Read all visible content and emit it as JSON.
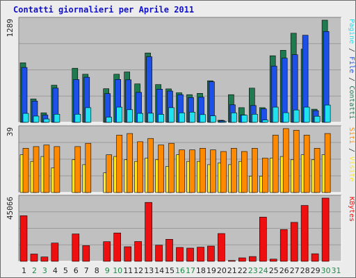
{
  "title": "Contatti giornalieri per Aprile 2011",
  "colors": {
    "pagine": "#1fe2f0",
    "file": "#1c50e8",
    "contatti": "#1f7a4f",
    "siti": "#ff8a00",
    "visite": "#ffe81e",
    "kbytes": "#ee1010",
    "title": "#1010c8",
    "weekend_label": "#1f8a4a",
    "weekday_label": "#222222"
  },
  "chart_data": [
    {
      "type": "bar",
      "name_label_parts": [
        "Pagine",
        " / ",
        "File",
        " / ",
        "Contatti"
      ],
      "max_label": "1289",
      "ylim": [
        0,
        1289
      ],
      "categories": [
        "1",
        "2",
        "3",
        "4",
        "5",
        "6",
        "7",
        "8",
        "9",
        "10",
        "11",
        "12",
        "13",
        "14",
        "15",
        "16",
        "17",
        "18",
        "19",
        "20",
        "21",
        "22",
        "23",
        "24",
        "25",
        "26",
        "27",
        "28",
        "29",
        "30",
        "31"
      ],
      "series": [
        {
          "name": "Contatti",
          "values": [
            751,
            295,
            119,
            468,
            0,
            682,
            607,
            0,
            424,
            607,
            636,
            485,
            875,
            476,
            422,
            373,
            349,
            366,
            524,
            26,
            349,
            185,
            431,
            185,
            840,
            908,
            1124,
            923,
            166,
            1289,
            0
          ]
        },
        {
          "name": "File",
          "values": [
            692,
            268,
            92,
            431,
            0,
            539,
            569,
            0,
            362,
            541,
            537,
            378,
            828,
            418,
            395,
            349,
            312,
            317,
            512,
            20,
            221,
            93,
            212,
            170,
            709,
            809,
            853,
            1099,
            147,
            1146,
            0
          ]
        },
        {
          "name": "Pagine",
          "values": [
            113,
            79,
            43,
            103,
            0,
            103,
            185,
            0,
            66,
            192,
            160,
            113,
            115,
            101,
            185,
            120,
            129,
            98,
            82,
            10,
            120,
            91,
            103,
            30,
            192,
            122,
            156,
            192,
            77,
            218,
            0
          ]
        }
      ],
      "grid": true
    },
    {
      "type": "bar",
      "name_label_parts": [
        "Siti",
        " / ",
        "Visite"
      ],
      "max_label": "39",
      "ylim": [
        0,
        39
      ],
      "categories": [
        "1",
        "2",
        "3",
        "4",
        "5",
        "6",
        "7",
        "8",
        "9",
        "10",
        "11",
        "12",
        "13",
        "14",
        "15",
        "16",
        "17",
        "18",
        "19",
        "20",
        "21",
        "22",
        "23",
        "24",
        "25",
        "26",
        "27",
        "28",
        "29",
        "30",
        "31"
      ],
      "series": [
        {
          "name": "Visite",
          "values": [
            23,
            19,
            22,
            15,
            0,
            20,
            17,
            0,
            12,
            22,
            20,
            19,
            21,
            20,
            16,
            23,
            19,
            19,
            17,
            18,
            17,
            19,
            10,
            10,
            21,
            22,
            20,
            23,
            20,
            23,
            0
          ]
        },
        {
          "name": "Siti",
          "values": [
            27,
            28,
            29,
            28,
            0,
            28,
            30,
            0,
            23,
            35,
            36,
            31,
            33,
            29,
            30,
            26,
            26,
            27,
            26,
            25,
            27,
            25,
            27,
            21,
            35,
            39,
            38,
            35,
            27,
            36,
            0
          ]
        }
      ],
      "grid": true
    },
    {
      "type": "bar",
      "name_label_parts": [
        "KBytes"
      ],
      "max_label": "45066",
      "ylim": [
        0,
        45066
      ],
      "categories": [
        "1",
        "2",
        "3",
        "4",
        "5",
        "6",
        "7",
        "8",
        "9",
        "10",
        "11",
        "12",
        "13",
        "14",
        "15",
        "16",
        "17",
        "18",
        "19",
        "20",
        "21",
        "22",
        "23",
        "24",
        "25",
        "26",
        "27",
        "28",
        "29",
        "30",
        "31"
      ],
      "series": [
        {
          "name": "KBytes",
          "values": [
            32500,
            5200,
            3100,
            13000,
            0,
            19500,
            11200,
            0,
            14000,
            20200,
            10400,
            14100,
            42000,
            11500,
            15700,
            9900,
            9400,
            10100,
            10900,
            19800,
            600,
            2500,
            3400,
            31500,
            1600,
            22700,
            27800,
            39800,
            5400,
            45066,
            0
          ]
        }
      ],
      "grid": true
    }
  ],
  "x_axis": {
    "labels": [
      "1",
      "2",
      "3",
      "4",
      "5",
      "6",
      "7",
      "8",
      "9",
      "10",
      "11",
      "12",
      "13",
      "14",
      "15",
      "16",
      "17",
      "18",
      "19",
      "20",
      "21",
      "22",
      "23",
      "24",
      "25",
      "26",
      "27",
      "28",
      "29",
      "30",
      "31"
    ],
    "weekend_days": [
      "2",
      "3",
      "9",
      "10",
      "16",
      "17",
      "23",
      "24",
      "30",
      "31"
    ]
  }
}
